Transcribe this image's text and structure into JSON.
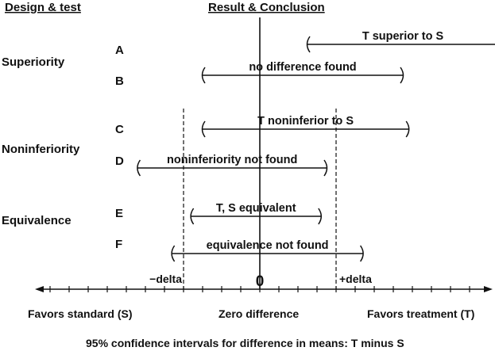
{
  "headers": {
    "left": "Design & test",
    "right": "Result & Conclusion"
  },
  "designs": [
    {
      "key": "superiority",
      "label": "Superiority"
    },
    {
      "key": "noninferiority",
      "label": "Noninferiority"
    },
    {
      "key": "equivalence",
      "label": "Equivalence"
    }
  ],
  "intervals": [
    {
      "letter": "A",
      "label": "T  superior to S",
      "lo": 1.25,
      "hi": 6.25
    },
    {
      "letter": "B",
      "label": "no difference found",
      "lo": -1.5,
      "hi": 3.75
    },
    {
      "letter": "C",
      "label": "T noninferior to S",
      "lo": -1.5,
      "hi": 3.9
    },
    {
      "letter": "D",
      "label": "noninferiority not found",
      "lo": -3.2,
      "hi": 1.75
    },
    {
      "letter": "E",
      "label": "T, S equivalent",
      "lo": -1.8,
      "hi": 1.6
    },
    {
      "letter": "F",
      "label": "equivalence not found",
      "lo": -2.3,
      "hi": 2.7
    }
  ],
  "axis": {
    "zero_label": "0",
    "minus_delta_label": "−delta",
    "plus_delta_label": "+delta",
    "delta": 2.0,
    "range": [
      -5.5,
      6.75
    ],
    "favors_standard": "Favors standard (S)",
    "zero_difference": "Zero difference",
    "favors_treatment": "Favors treatment (T)"
  },
  "caption": "95% confidence intervals for difference in means:  T  minus S"
}
